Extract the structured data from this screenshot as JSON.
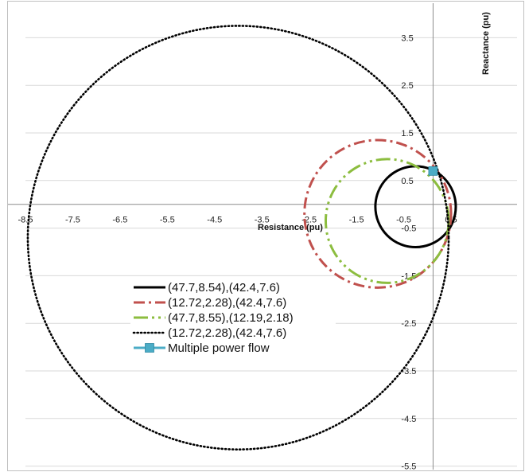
{
  "chart_data": {
    "type": "scatter",
    "title": "",
    "xlabel": "Resistance (pu)",
    "ylabel": "Reactance (pu)",
    "xlim": [
      -8.5,
      0.6
    ],
    "ylim": [
      -5.5,
      4.0
    ],
    "x_ticks": [
      -8.5,
      -7.5,
      -6.5,
      -5.5,
      -4.5,
      -3.5,
      -2.5,
      -1.5,
      -0.5,
      0.5
    ],
    "x_tick_labels": [
      "-8.5",
      "-7.5",
      "-6.5",
      "-5.5",
      "-4.5",
      "-3.5",
      "-2.5",
      "-1.5",
      "-0.5",
      "0.5"
    ],
    "y_ticks": [
      3.5,
      2.5,
      1.5,
      0.5,
      -0.5,
      -1.5,
      -2.5,
      -3.5,
      -4.5,
      -5.5
    ],
    "y_tick_labels": [
      "3.5",
      "2.5",
      "1.5",
      "0.5",
      "-0.5",
      "-1.5",
      "-2.5",
      "-3.5",
      "-4.5",
      "-5.5"
    ],
    "grid": "horizontal",
    "legend_position": "bottom-left",
    "series": [
      {
        "name": "(47.7,8.54),(42.4,7.6)",
        "shape": "circle",
        "center": [
          -0.25,
          -0.05
        ],
        "radius": 0.85,
        "color": "#000000",
        "style": "solid"
      },
      {
        "name": "(12.72,2.28),(42.4,7.6)",
        "shape": "circle",
        "center": [
          -1.05,
          -0.2
        ],
        "radius": 1.55,
        "color": "#c0504d",
        "style": "dashdot"
      },
      {
        "name": "(47.7,8.55),(12.19,2.18)",
        "shape": "circle",
        "center": [
          -0.85,
          -0.35
        ],
        "radius": 1.3,
        "color": "#8cbd3f",
        "style": "dashdotdot"
      },
      {
        "name": "(12.72,2.28),(42.4,7.6)",
        "shape": "circle",
        "center": [
          -4.0,
          -0.7
        ],
        "radius": 4.45,
        "color": "#000000",
        "style": "dotted"
      },
      {
        "name": "Multiple power flow",
        "shape": "marker",
        "points": [
          [
            0.12,
            0.7
          ]
        ],
        "color": "#4bacc6",
        "style": "square"
      }
    ]
  }
}
